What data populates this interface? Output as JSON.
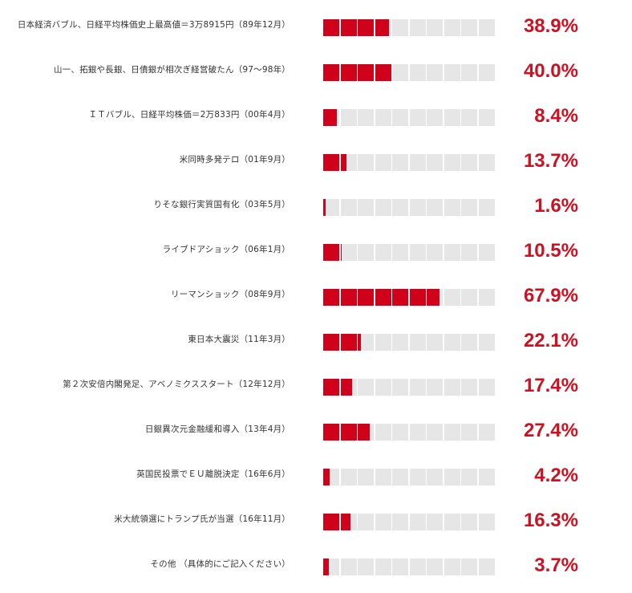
{
  "chart_data": {
    "type": "bar",
    "orientation": "horizontal",
    "bar_style": "segmented-10",
    "colors": {
      "fill": "#d0021b",
      "track": "#e6e6e6",
      "value_text": "#cc1122"
    },
    "xlim": [
      0,
      100
    ],
    "unit": "%",
    "categories": [
      "日本経済バブル、日経平均株価史上最高値＝3万8915円（89年12月）",
      "山一、拓銀や長銀、日債銀が相次ぎ経営破たん（97〜98年）",
      "ＩＴバブル、日経平均株価＝2万833円（00年4月）",
      "米同時多発テロ（01年9月）",
      "りそな銀行実質国有化（03年5月）",
      "ライブドアショック（06年1月）",
      "リーマンショック（08年9月）",
      "東日本大震災（11年3月）",
      "第２次安倍内閣発足、アベノミクススタート（12年12月）",
      "日銀異次元金融緩和導入（13年4月）",
      "英国民投票でＥＵ離脱決定（16年6月）",
      "米大統領選にトランプ氏が当選（16年11月）",
      "その他 （具体的にご記入ください）"
    ],
    "values": [
      38.9,
      40.0,
      8.4,
      13.7,
      1.6,
      10.5,
      67.9,
      22.1,
      17.4,
      27.4,
      4.2,
      16.3,
      3.7
    ],
    "value_labels": [
      "38.9%",
      "40.0%",
      "8.4%",
      "13.7%",
      "1.6%",
      "10.5%",
      "67.9%",
      "22.1%",
      "17.4%",
      "27.4%",
      "4.2%",
      "16.3%",
      "3.7%"
    ]
  }
}
